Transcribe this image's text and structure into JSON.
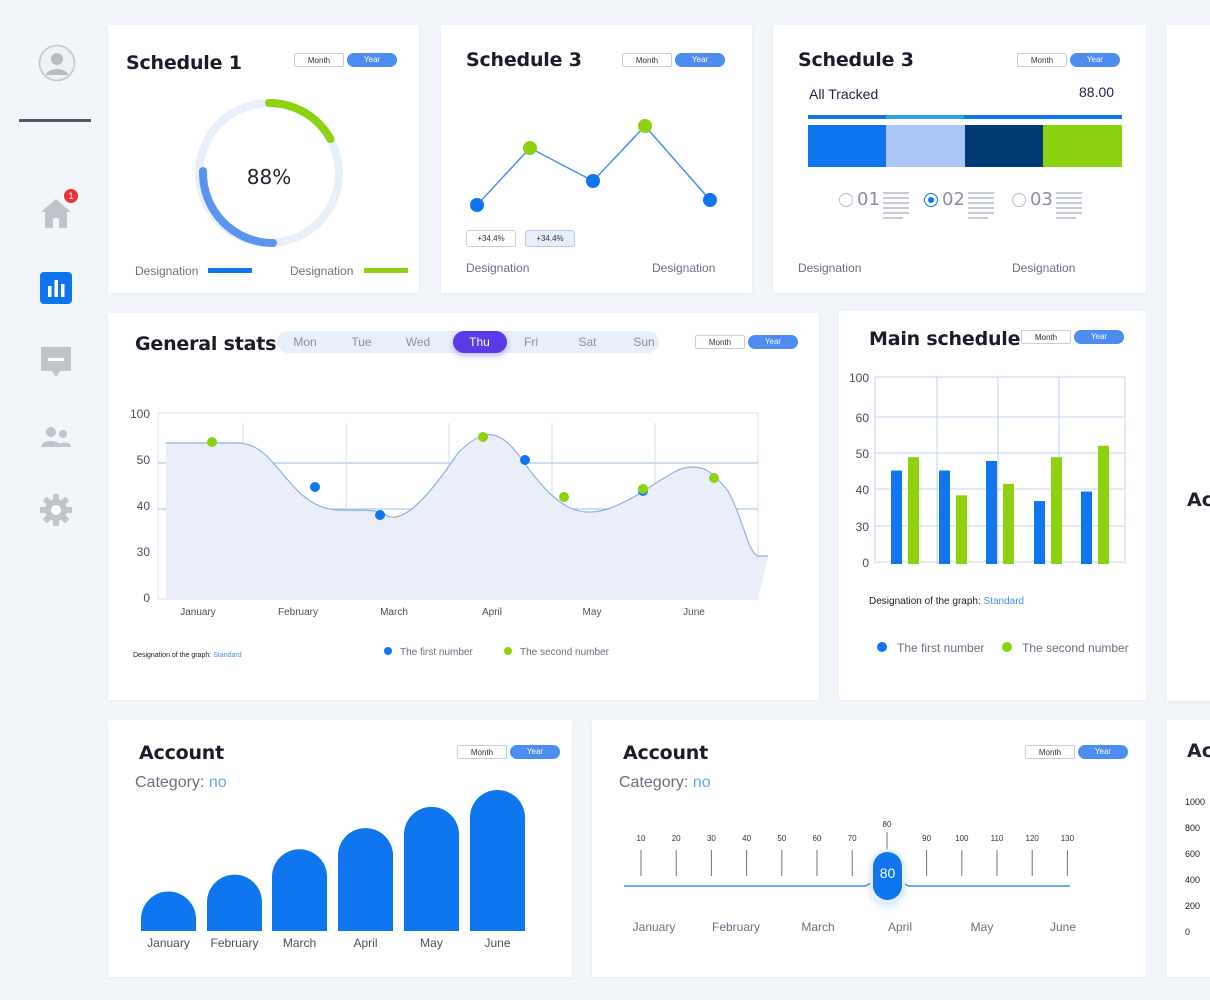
{
  "toggle": {
    "month": "Month",
    "year": "Year"
  },
  "sidebar": {
    "notification_count": "1"
  },
  "card1": {
    "title": "Schedule 1",
    "percent_label": "88%",
    "percent": 88,
    "legend1": "Designation",
    "legend2": "Designation"
  },
  "card2": {
    "title": "Schedule 3",
    "badge1": "+34.4%",
    "badge2": "+34.4%",
    "label_left": "Designation",
    "label_right": "Designation"
  },
  "card3": {
    "title": "Schedule 3",
    "tracked_label": "All Tracked",
    "tracked_value": "88.00",
    "options": [
      {
        "num": "01",
        "selected": false
      },
      {
        "num": "02",
        "selected": true
      },
      {
        "num": "03",
        "selected": false
      }
    ],
    "label_left": "Designation",
    "label_right": "Designation"
  },
  "general": {
    "title": "General stats",
    "days": [
      "Mon",
      "Tue",
      "Wed",
      "Thu",
      "Fri",
      "Sat",
      "Sun"
    ],
    "active_day": "Thu",
    "footer_label": "Designation of the graph:",
    "footer_value": "Standard",
    "legend1": "The first number",
    "legend2": "The second number"
  },
  "main": {
    "title": "Main schedule",
    "footer_label": "Designation of the graph:",
    "footer_value": "Standard",
    "legend1": "The first number",
    "legend2": "The second number"
  },
  "account1": {
    "title": "Account",
    "category_label": "Category:",
    "category_value": "no"
  },
  "account2": {
    "title": "Account",
    "category_label": "Category:",
    "category_value": "no",
    "ticks": [
      "10",
      "20",
      "30",
      "40",
      "50",
      "60",
      "70",
      "80",
      "90",
      "100",
      "110",
      "120",
      "130"
    ],
    "months": [
      "January",
      "February",
      "March",
      "April",
      "May",
      "June"
    ],
    "slider_value": "80"
  },
  "partial": {
    "title1": "Acc",
    "title2": "Acc",
    "ticks": [
      "1000",
      "800",
      "600",
      "400",
      "200",
      "0"
    ]
  },
  "colors": {
    "blue": "#0f76ef",
    "green": "#8cd20e",
    "light_blue": "#e6effa",
    "navy": "#033a75"
  },
  "chart_data": [
    {
      "type": "line",
      "title": "Schedule 3",
      "points_y": [
        205,
        148,
        181,
        126,
        200
      ],
      "note": "values unlabeled; relative scale"
    },
    {
      "type": "area",
      "title": "General stats",
      "categories": [
        "January",
        "February",
        "March",
        "April",
        "May",
        "June"
      ],
      "yticks": [
        "100",
        "50",
        "40",
        "30",
        "0"
      ],
      "series": [
        {
          "name": "The first number",
          "points": [
            [
              0.4,
              45
            ],
            [
              1.1,
              39
            ],
            [
              2.1,
              50
            ],
            [
              4.3,
              44
            ]
          ]
        },
        {
          "name": "The second number",
          "points": [
            [
              -0.1,
              54
            ],
            [
              2.8,
              55
            ],
            [
              3.7,
              48
            ],
            [
              4.5,
              45
            ],
            [
              5.2,
              51
            ]
          ]
        }
      ]
    },
    {
      "type": "bar",
      "title": "Main schedule",
      "yticks": [
        "100",
        "60",
        "50",
        "40",
        "30",
        "0"
      ],
      "series": [
        {
          "name": "The first number",
          "values": [
            49,
            49,
            54,
            33,
            38
          ]
        },
        {
          "name": "The second number",
          "values": [
            56,
            36,
            42,
            56,
            62
          ]
        }
      ]
    },
    {
      "type": "bar",
      "title": "Account",
      "categories": [
        "January",
        "February",
        "March",
        "April",
        "May",
        "June"
      ],
      "values": [
        28,
        40,
        58,
        73,
        88,
        100
      ]
    }
  ]
}
